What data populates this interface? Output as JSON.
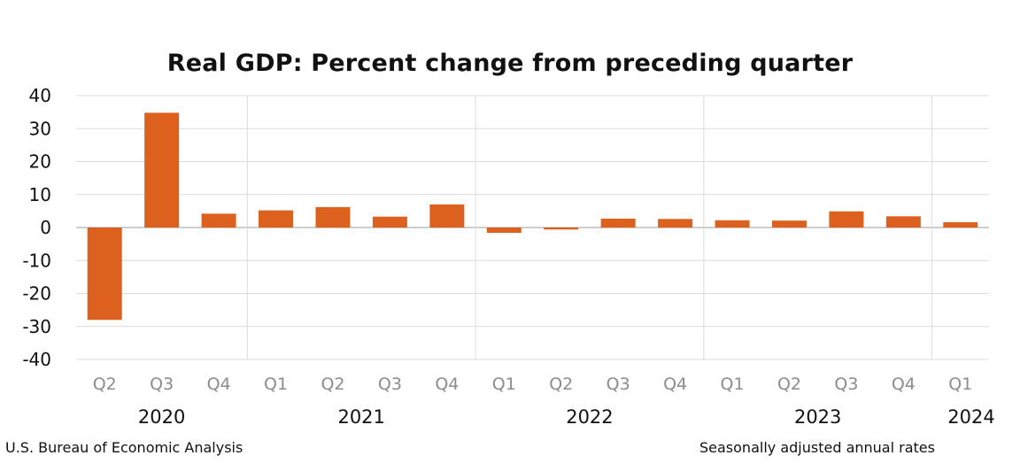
{
  "chart_data": {
    "type": "bar",
    "title": "Real GDP:  Percent change from preceding quarter",
    "xlabel": "",
    "ylabel": "",
    "ylim": [
      -40,
      40
    ],
    "yticks": [
      "40",
      "30",
      "20",
      "10",
      "0",
      "-10",
      "-20",
      "-30",
      "-40"
    ],
    "categories": [
      "Q2",
      "Q3",
      "Q4",
      "Q1",
      "Q2",
      "Q3",
      "Q4",
      "Q1",
      "Q2",
      "Q3",
      "Q4",
      "Q1",
      "Q2",
      "Q3",
      "Q4",
      "Q1"
    ],
    "values": [
      -28.0,
      34.8,
      4.2,
      5.2,
      6.2,
      3.3,
      7.0,
      -1.6,
      -0.6,
      2.7,
      2.6,
      2.2,
      2.1,
      4.9,
      3.4,
      1.6
    ],
    "year_groups": [
      {
        "label": "2020",
        "start": 0,
        "end": 2
      },
      {
        "label": "2021",
        "start": 3,
        "end": 6
      },
      {
        "label": "2022",
        "start": 7,
        "end": 10
      },
      {
        "label": "2023",
        "start": 11,
        "end": 14
      },
      {
        "label": "2024",
        "start": 15,
        "end": 15
      }
    ],
    "grid": true,
    "bar_color": "#dc601e"
  },
  "footer": {
    "source": "U.S. Bureau of Economic Analysis",
    "note": "Seasonally adjusted annual rates"
  }
}
